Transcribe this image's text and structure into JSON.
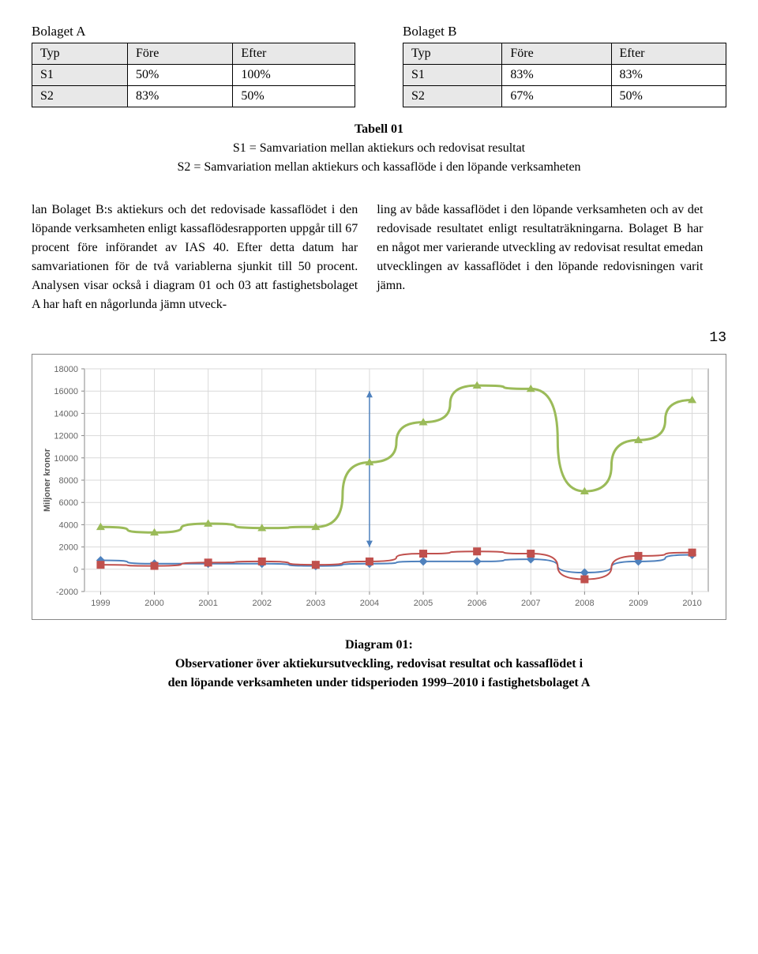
{
  "tableA": {
    "title": "Bolaget A",
    "headers": [
      "Typ",
      "Före",
      "Efter"
    ],
    "rows": [
      [
        "S1",
        "50%",
        "100%"
      ],
      [
        "S2",
        "83%",
        "50%"
      ]
    ]
  },
  "tableB": {
    "title": "Bolaget B",
    "headers": [
      "Typ",
      "Före",
      "Efter"
    ],
    "rows": [
      [
        "S1",
        "83%",
        "83%"
      ],
      [
        "S2",
        "67%",
        "50%"
      ]
    ]
  },
  "tabell": {
    "label": "Tabell 01",
    "line1": "S1 = Samvariation mellan aktiekurs och redovisat resultat",
    "line2": "S2 = Samvariation mellan aktiekurs och kassaflöde i den löpande verksamheten"
  },
  "body": {
    "col1": "lan Bolaget B:s aktiekurs och det redovisade kassaflödet i den löpande verksamheten enligt kassaflödesrapporten uppgår till 67 procent före införandet av IAS 40. Efter detta datum har samvariationen för de två variablerna sjunkit till 50 procent. Analysen visar också i diagram 01 och 03 att fastighetsbolaget A har haft en någorlunda jämn utveck-",
    "col2": "ling av både kassaflödet i den löpande verksamheten och av det redovisade resultatet enligt resultaträkningarna. Bolaget B har en något mer varierande utveckling av redovisat resultat emedan utvecklingen av kassaflödet i den löpande redovisningen varit jämn."
  },
  "page_num": "13",
  "chart": {
    "type": "line",
    "ylabel": "Miljoner kronor",
    "ylim": [
      -2000,
      18000
    ],
    "ytick_step": 2000,
    "x_categories": [
      "1999",
      "2000",
      "2001",
      "2002",
      "2003",
      "2004",
      "2005",
      "2006",
      "2007",
      "2008",
      "2009",
      "2010"
    ],
    "grid_color": "#d9d9d9",
    "background_color": "#ffffff",
    "axis_color": "#888888",
    "series": [
      {
        "name": "green",
        "color": "#9bbb59",
        "marker": "triangle",
        "marker_size": 7,
        "line_width": 3,
        "values": [
          3800,
          3300,
          4100,
          3700,
          3800,
          9600,
          13200,
          16500,
          16200,
          7000,
          11600,
          15200
        ]
      },
      {
        "name": "blue",
        "color": "#4f81bd",
        "marker": "diamond",
        "marker_size": 7,
        "line_width": 2,
        "values": [
          800,
          500,
          500,
          500,
          300,
          500,
          700,
          700,
          900,
          -300,
          700,
          1300
        ]
      },
      {
        "name": "red",
        "color": "#c0504d",
        "marker": "square",
        "marker_size": 6,
        "line_width": 2,
        "values": [
          400,
          300,
          600,
          700,
          400,
          700,
          1400,
          1600,
          1400,
          -900,
          1200,
          1500
        ]
      }
    ],
    "annotation_arrow": {
      "x": "2004",
      "y_from": 2000,
      "y_to": 16000,
      "color": "#4f81bd"
    }
  },
  "caption": {
    "title": "Diagram 01:",
    "line1": "Observationer över aktiekursutveckling, redovisat resultat och kassaflödet i",
    "line2": "den löpande verksamheten under tidsperioden 1999–2010 i fastighetsbolaget A"
  }
}
